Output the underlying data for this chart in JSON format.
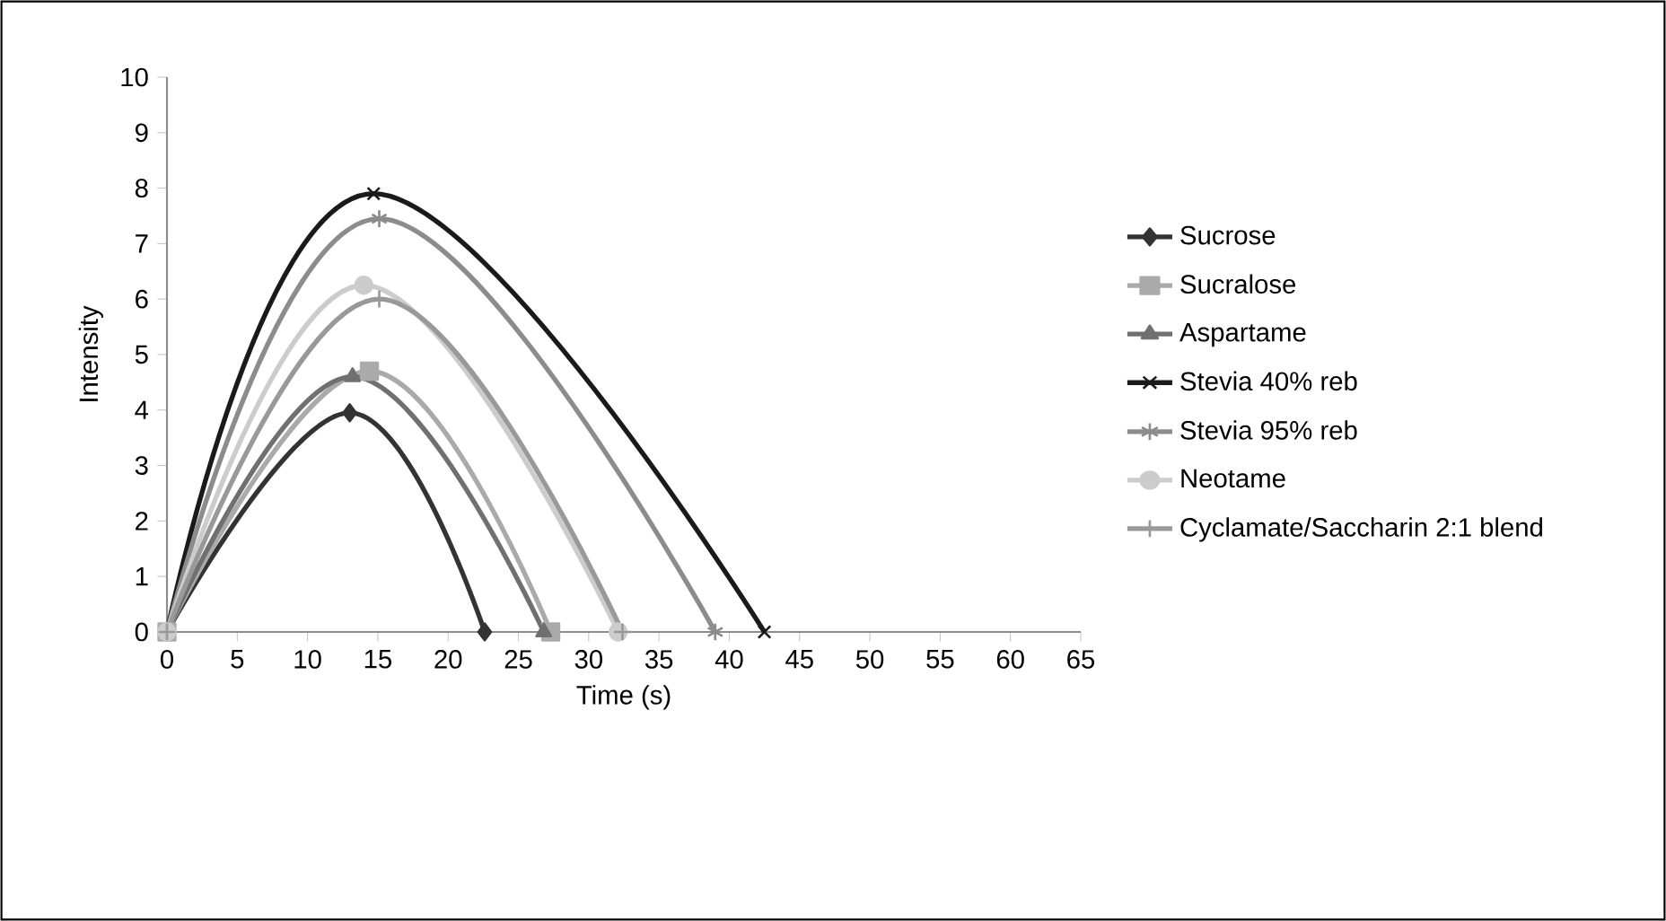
{
  "chart_data": {
    "type": "line",
    "xlabel": "Time (s)",
    "ylabel": "Intensity",
    "xlim": [
      0,
      65
    ],
    "ylim": [
      0,
      10
    ],
    "xticks": [
      0,
      5,
      10,
      15,
      20,
      25,
      30,
      35,
      40,
      45,
      50,
      55,
      60,
      65
    ],
    "yticks": [
      0,
      1,
      2,
      3,
      4,
      5,
      6,
      7,
      8,
      9,
      10
    ],
    "legend": "right",
    "grid": false,
    "series": [
      {
        "name": "Sucrose",
        "color": "#333333",
        "marker": "diamond",
        "x": [
          0,
          13.0,
          22.6
        ],
        "values": [
          0,
          3.95,
          0
        ]
      },
      {
        "name": "Sucralose",
        "color": "#aaaaaa",
        "marker": "square",
        "x": [
          0,
          14.4,
          27.3
        ],
        "values": [
          0,
          4.7,
          0
        ]
      },
      {
        "name": "Aspartame",
        "color": "#707070",
        "marker": "triangle",
        "x": [
          0,
          13.2,
          26.8
        ],
        "values": [
          0,
          4.6,
          0
        ]
      },
      {
        "name": "Stevia 40% reb",
        "color": "#1a1a1a",
        "marker": "cross",
        "x": [
          0,
          14.7,
          42.5
        ],
        "values": [
          0,
          7.9,
          0
        ]
      },
      {
        "name": "Stevia 95% reb",
        "color": "#8c8c8c",
        "marker": "cross",
        "x": [
          0,
          15.1,
          39.0
        ],
        "values": [
          0,
          7.45,
          0
        ]
      },
      {
        "name": "Neotame",
        "color": "#cccccc",
        "marker": "circle",
        "x": [
          0,
          14.0,
          32.1
        ],
        "values": [
          0,
          6.25,
          0
        ]
      },
      {
        "name": "Cyclamate/Saccharin 2:1 blend",
        "color": "#999999",
        "marker": "cross",
        "line_style": "solid",
        "x": [
          0,
          15.1,
          32.4
        ],
        "values": [
          0,
          6.0,
          0
        ]
      }
    ]
  }
}
